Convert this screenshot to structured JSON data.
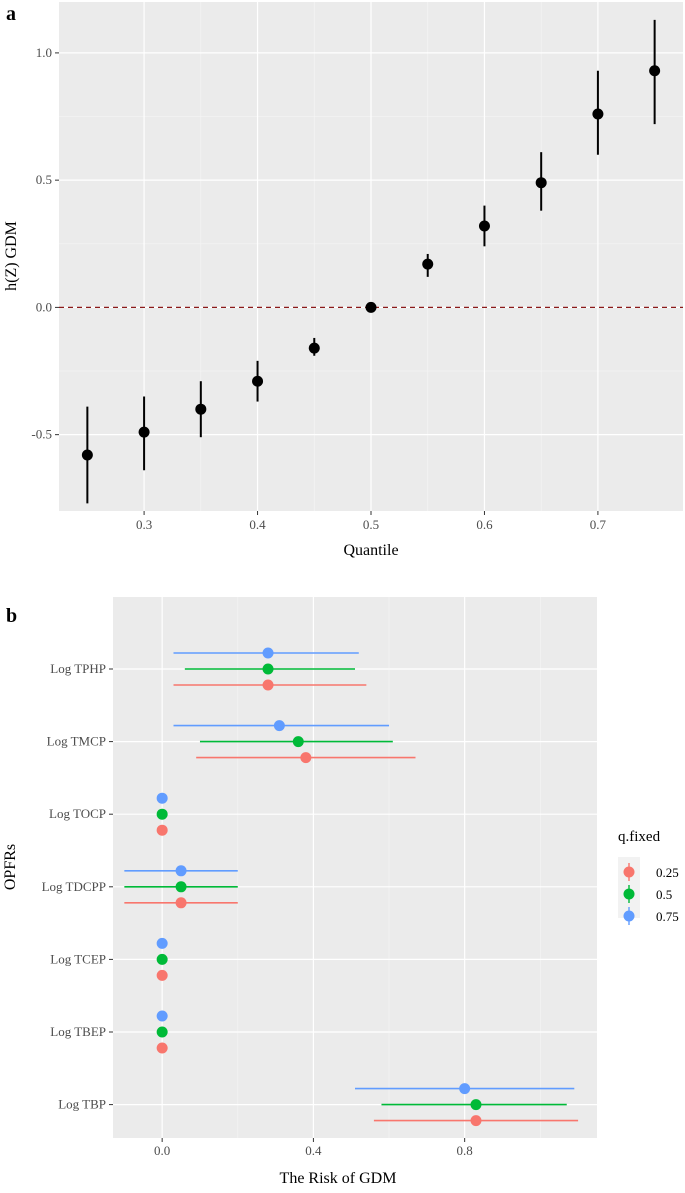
{
  "chart_data": [
    {
      "panel": "a",
      "type": "scatter",
      "title": "",
      "xlabel": "Quantile",
      "ylabel": "h(Z) GDM",
      "xlim": [
        0.225,
        0.775
      ],
      "ylim": [
        -0.8,
        1.2
      ],
      "xticks": [
        0.3,
        0.4,
        0.5,
        0.6,
        0.7
      ],
      "xtick_labels": [
        "0.3",
        "0.4",
        "0.5",
        "0.6",
        "0.7"
      ],
      "yticks": [
        -0.5,
        0.0,
        0.5,
        1.0
      ],
      "ytick_labels": [
        "-0.5",
        "0.0",
        "0.5",
        "1.0"
      ],
      "reference_line": {
        "y": 0,
        "style": "dashed",
        "color": "#8b1a1a"
      },
      "point_color": "#000000",
      "points": [
        {
          "x": 0.25,
          "y": -0.58,
          "lower": -0.77,
          "upper": -0.39
        },
        {
          "x": 0.3,
          "y": -0.49,
          "lower": -0.64,
          "upper": -0.35
        },
        {
          "x": 0.35,
          "y": -0.4,
          "lower": -0.51,
          "upper": -0.29
        },
        {
          "x": 0.4,
          "y": -0.29,
          "lower": -0.37,
          "upper": -0.21
        },
        {
          "x": 0.45,
          "y": -0.16,
          "lower": -0.19,
          "upper": -0.12
        },
        {
          "x": 0.5,
          "y": 0.0,
          "lower": 0.0,
          "upper": 0.0
        },
        {
          "x": 0.55,
          "y": 0.17,
          "lower": 0.12,
          "upper": 0.21
        },
        {
          "x": 0.6,
          "y": 0.32,
          "lower": 0.24,
          "upper": 0.4
        },
        {
          "x": 0.65,
          "y": 0.49,
          "lower": 0.38,
          "upper": 0.61
        },
        {
          "x": 0.7,
          "y": 0.76,
          "lower": 0.6,
          "upper": 0.93
        },
        {
          "x": 0.75,
          "y": 0.93,
          "lower": 0.72,
          "upper": 1.13
        }
      ]
    },
    {
      "panel": "b",
      "type": "scatter",
      "title": "",
      "xlabel": "The Risk of GDM",
      "ylabel": "OPFRs",
      "xlim": [
        -0.13,
        1.15
      ],
      "xticks": [
        0.0,
        0.4,
        0.8
      ],
      "xtick_labels": [
        "0.0",
        "0.4",
        "0.8"
      ],
      "minor_gridlines_x": [
        0.2,
        0.6,
        1.0
      ],
      "categories": [
        "Log TPHP",
        "Log TMCP",
        "Log TOCP",
        "Log TDCPP",
        "Log TCEP",
        "Log TBEP",
        "Log TBP"
      ],
      "legend": {
        "title": "q.fixed",
        "position": "right"
      },
      "series": [
        {
          "name": "0.25",
          "color": "#f8766d",
          "values": [
            {
              "est": 0.28,
              "lower": 0.03,
              "upper": 0.54
            },
            {
              "est": 0.38,
              "lower": 0.09,
              "upper": 0.67
            },
            {
              "est": 0.0,
              "lower": 0.0,
              "upper": 0.0
            },
            {
              "est": 0.05,
              "lower": -0.1,
              "upper": 0.2
            },
            {
              "est": 0.0,
              "lower": 0.0,
              "upper": 0.0
            },
            {
              "est": 0.0,
              "lower": 0.0,
              "upper": 0.0
            },
            {
              "est": 0.83,
              "lower": 0.56,
              "upper": 1.1
            }
          ]
        },
        {
          "name": "0.5",
          "color": "#00ba38",
          "values": [
            {
              "est": 0.28,
              "lower": 0.06,
              "upper": 0.51
            },
            {
              "est": 0.36,
              "lower": 0.1,
              "upper": 0.61
            },
            {
              "est": 0.0,
              "lower": 0.0,
              "upper": 0.0
            },
            {
              "est": 0.05,
              "lower": -0.1,
              "upper": 0.2
            },
            {
              "est": 0.0,
              "lower": 0.0,
              "upper": 0.0
            },
            {
              "est": 0.0,
              "lower": 0.0,
              "upper": 0.0
            },
            {
              "est": 0.83,
              "lower": 0.58,
              "upper": 1.07
            }
          ]
        },
        {
          "name": "0.75",
          "color": "#619cff",
          "values": [
            {
              "est": 0.28,
              "lower": 0.03,
              "upper": 0.52
            },
            {
              "est": 0.31,
              "lower": 0.03,
              "upper": 0.6
            },
            {
              "est": 0.0,
              "lower": 0.0,
              "upper": 0.0
            },
            {
              "est": 0.05,
              "lower": -0.1,
              "upper": 0.2
            },
            {
              "est": 0.0,
              "lower": 0.0,
              "upper": 0.0
            },
            {
              "est": 0.0,
              "lower": 0.0,
              "upper": 0.0
            },
            {
              "est": 0.8,
              "lower": 0.51,
              "upper": 1.09
            }
          ]
        }
      ]
    }
  ],
  "panels": {
    "a": "a",
    "b": "b"
  }
}
